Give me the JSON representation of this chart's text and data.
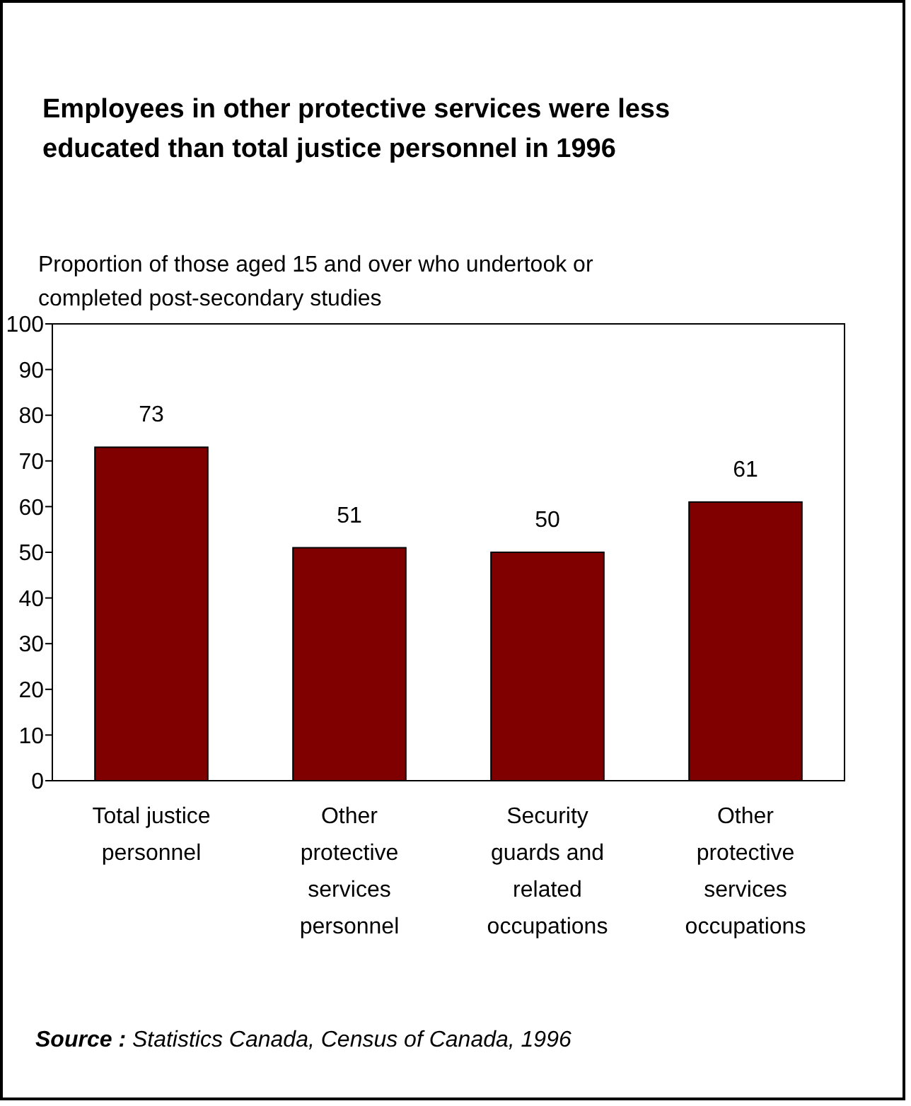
{
  "chart_data": {
    "type": "bar",
    "title": "Employees in other protective services were less educated than  total justice personnel in 1996",
    "subtitle": "Proportion of those aged 15 and over who undertook or completed post-secondary studies",
    "categories": [
      "Total justice personnel",
      "Other protective services personnel",
      "Security guards and related occupations",
      "Other protective services occupations"
    ],
    "values": [
      73,
      51,
      50,
      61
    ],
    "color": "#800000",
    "ylim": [
      0,
      100
    ],
    "yticks": [
      0,
      10,
      20,
      30,
      40,
      50,
      60,
      70,
      80,
      90,
      100
    ],
    "grid": false,
    "data_labels": true,
    "annotations": [
      "Source : Statistics Canada, Census of Canada, 1996"
    ]
  }
}
